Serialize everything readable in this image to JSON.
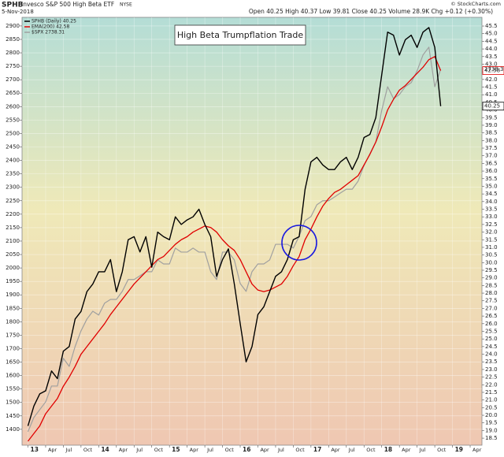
{
  "header": {
    "symbol": "SPHB",
    "name": "Invesco S&P 500 High Beta ETF",
    "exchange": "NYSE",
    "date": "5-Nov-2018",
    "quote": "Open 40.25  High 40.37  Low 39.81  Close 40.25  Volume 28.9K  Chg +0.12 (+0.30%)",
    "watermark": "© StockCharts.com"
  },
  "chart_data": {
    "type": "line",
    "annotation": "High Beta Trumpflation Trade",
    "legend": "upper left",
    "grid": true,
    "x": [
      "2013-01",
      "2013-02",
      "2013-03",
      "2013-04",
      "2013-05",
      "2013-06",
      "2013-07",
      "2013-08",
      "2013-09",
      "2013-10",
      "2013-11",
      "2013-12",
      "2014-01",
      "2014-02",
      "2014-03",
      "2014-04",
      "2014-05",
      "2014-06",
      "2014-07",
      "2014-08",
      "2014-09",
      "2014-10",
      "2014-11",
      "2014-12",
      "2015-01",
      "2015-02",
      "2015-03",
      "2015-04",
      "2015-05",
      "2015-06",
      "2015-07",
      "2015-08",
      "2015-09",
      "2015-10",
      "2015-11",
      "2015-12",
      "2016-01",
      "2016-02",
      "2016-03",
      "2016-04",
      "2016-05",
      "2016-06",
      "2016-07",
      "2016-08",
      "2016-09",
      "2016-10",
      "2016-11",
      "2016-12",
      "2017-01",
      "2017-02",
      "2017-03",
      "2017-04",
      "2017-05",
      "2017-06",
      "2017-07",
      "2017-08",
      "2017-09",
      "2017-10",
      "2017-11",
      "2017-12",
      "2018-01",
      "2018-02",
      "2018-03",
      "2018-04",
      "2018-05",
      "2018-06",
      "2018-07",
      "2018-08",
      "2018-09",
      "2018-10",
      "2018-11"
    ],
    "series": [
      {
        "name": "SPHB (Daily) 40.25",
        "color": "#000000",
        "axis": "y2",
        "width": 1.4,
        "values": [
          19.3,
          20.6,
          21.4,
          21.6,
          22.9,
          22.4,
          24.2,
          24.5,
          26.3,
          26.8,
          28.1,
          28.6,
          29.4,
          29.4,
          30.2,
          28.1,
          29.4,
          31.5,
          31.7,
          30.7,
          31.7,
          29.7,
          32.0,
          31.7,
          31.5,
          33.0,
          32.5,
          32.8,
          33.0,
          33.5,
          32.5,
          31.7,
          29.1,
          30.2,
          30.9,
          28.6,
          26.0,
          23.5,
          24.5,
          26.6,
          27.1,
          28.1,
          29.1,
          29.4,
          30.2,
          31.5,
          31.7,
          34.8,
          36.6,
          36.9,
          36.4,
          36.1,
          36.1,
          36.6,
          36.9,
          36.1,
          36.9,
          38.2,
          38.4,
          39.5,
          42.3,
          45.1,
          44.9,
          43.6,
          44.6,
          44.9,
          44.1,
          45.1,
          45.4,
          44.1,
          40.25
        ]
      },
      {
        "name": "EMA(200) 42.58",
        "color": "#e00000",
        "axis": "y2",
        "width": 1.3,
        "values": [
          18.3,
          18.8,
          19.3,
          20.1,
          20.6,
          21.1,
          21.9,
          22.5,
          23.2,
          24.0,
          24.5,
          25.0,
          25.5,
          26.0,
          26.6,
          27.1,
          27.6,
          28.1,
          28.6,
          29.0,
          29.4,
          29.8,
          30.2,
          30.4,
          30.8,
          31.2,
          31.5,
          31.7,
          32.0,
          32.2,
          32.4,
          32.3,
          32.0,
          31.5,
          31.1,
          30.8,
          30.2,
          29.4,
          28.6,
          28.2,
          28.1,
          28.2,
          28.4,
          28.6,
          29.1,
          29.8,
          30.4,
          31.5,
          32.2,
          33.0,
          33.7,
          34.2,
          34.6,
          34.8,
          35.1,
          35.4,
          35.7,
          36.4,
          37.1,
          37.9,
          38.9,
          40.0,
          40.7,
          41.3,
          41.6,
          42.0,
          42.4,
          42.8,
          43.3,
          43.5,
          42.58
        ]
      },
      {
        "name": "$SPX 2738.31",
        "color": "#a0a0a0",
        "axis": "y",
        "width": 1.2,
        "values": [
          1391,
          1444,
          1473,
          1502,
          1561,
          1561,
          1664,
          1634,
          1708,
          1766,
          1810,
          1839,
          1825,
          1869,
          1883,
          1883,
          1913,
          1957,
          1957,
          1971,
          1986,
          1986,
          2030,
          2015,
          2015,
          2074,
          2059,
          2059,
          2074,
          2059,
          2059,
          1986,
          1957,
          2059,
          2059,
          2030,
          1942,
          1913,
          1986,
          2015,
          2015,
          2030,
          2088,
          2088,
          2088,
          2074,
          2118,
          2176,
          2191,
          2235,
          2250,
          2250,
          2264,
          2279,
          2293,
          2293,
          2323,
          2381,
          2425,
          2469,
          2586,
          2674,
          2630,
          2645,
          2674,
          2689,
          2733,
          2792,
          2821,
          2674,
          2738.31
        ]
      }
    ],
    "xlim": [
      "2012-12",
      "2019-06"
    ],
    "xticks": [
      {
        "value": "2013-01",
        "label": "13"
      },
      {
        "value": "2013-04",
        "label": "Apr"
      },
      {
        "value": "2013-07",
        "label": "Jul"
      },
      {
        "value": "2013-10",
        "label": "Oct"
      },
      {
        "value": "2014-01",
        "label": "14"
      },
      {
        "value": "2014-04",
        "label": "Apr"
      },
      {
        "value": "2014-07",
        "label": "Jul"
      },
      {
        "value": "2014-10",
        "label": "Oct"
      },
      {
        "value": "2015-01",
        "label": "15"
      },
      {
        "value": "2015-04",
        "label": "Apr"
      },
      {
        "value": "2015-07",
        "label": "Jul"
      },
      {
        "value": "2015-10",
        "label": "Oct"
      },
      {
        "value": "2016-01",
        "label": "16"
      },
      {
        "value": "2016-04",
        "label": "Apr"
      },
      {
        "value": "2016-07",
        "label": "Jul"
      },
      {
        "value": "2016-10",
        "label": "Oct"
      },
      {
        "value": "2017-01",
        "label": "17"
      },
      {
        "value": "2017-04",
        "label": "Apr"
      },
      {
        "value": "2017-07",
        "label": "Jul"
      },
      {
        "value": "2017-10",
        "label": "Oct"
      },
      {
        "value": "2018-01",
        "label": "18"
      },
      {
        "value": "2018-04",
        "label": "Apr"
      },
      {
        "value": "2018-07",
        "label": "Jul"
      },
      {
        "value": "2018-10",
        "label": "Oct"
      },
      {
        "value": "2019-01",
        "label": "19"
      },
      {
        "value": "2019-04",
        "label": "Apr"
      }
    ],
    "ylim": [
      1341,
      2932
    ],
    "yticks": [
      1400,
      1450,
      1500,
      1550,
      1600,
      1650,
      1700,
      1750,
      1800,
      1850,
      1900,
      1950,
      2000,
      2050,
      2100,
      2150,
      2200,
      2250,
      2300,
      2350,
      2400,
      2450,
      2500,
      2550,
      2600,
      2650,
      2700,
      2750,
      2800,
      2850,
      2900
    ],
    "y2lim": [
      18.04,
      46.07
    ],
    "y2ticks": [
      18.5,
      {
        "value": 19,
        "label": "19.0"
      },
      19.5,
      {
        "value": 20,
        "label": "20.0"
      },
      20.5,
      {
        "value": 21,
        "label": "21.0"
      },
      21.5,
      {
        "value": 22,
        "label": "22.0"
      },
      22.5,
      {
        "value": 23,
        "label": "23.0"
      },
      23.5,
      {
        "value": 24,
        "label": "24.0"
      },
      24.5,
      {
        "value": 25,
        "label": "25.0"
      },
      25.5,
      {
        "value": 26,
        "label": "26.0"
      },
      26.5,
      {
        "value": 27,
        "label": "27.0"
      },
      27.5,
      {
        "value": 28,
        "label": "28.0"
      },
      28.5,
      {
        "value": 29,
        "label": "29.0"
      },
      29.5,
      {
        "value": 30,
        "label": "30.0"
      },
      30.5,
      {
        "value": 31,
        "label": "31.0"
      },
      31.5,
      {
        "value": 32,
        "label": "32.0"
      },
      32.5,
      {
        "value": 33,
        "label": "33.0"
      },
      33.5,
      {
        "value": 34,
        "label": "34.0"
      },
      34.5,
      {
        "value": 35,
        "label": "35.0"
      },
      35.5,
      {
        "value": 36,
        "label": "36.0"
      },
      36.5,
      {
        "value": 37,
        "label": "37.0"
      },
      37.5,
      {
        "value": 38,
        "label": "38.0"
      },
      38.5,
      {
        "value": 39,
        "label": "39.0"
      },
      39.5,
      {
        "value": 40,
        "label": "40.0"
      },
      40.5,
      {
        "value": 41,
        "label": "41.0"
      },
      41.5,
      {
        "value": 42,
        "label": "42.0"
      },
      42.5,
      {
        "value": 43,
        "label": "43.0"
      },
      43.5,
      {
        "value": 44,
        "label": "44.0"
      },
      44.5,
      {
        "value": 45,
        "label": "45.0"
      },
      45.5
    ]
  }
}
